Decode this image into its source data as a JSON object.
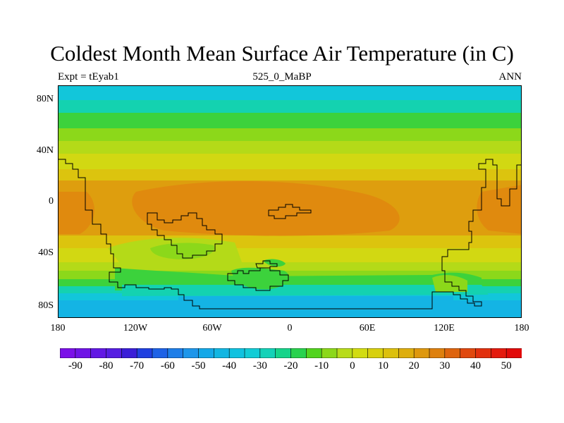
{
  "title": "Coldest Month Mean Surface Air Temperature (in C)",
  "subtitle_left": "Expt = tEyab1",
  "subtitle_center": "525_0_MaBP",
  "subtitle_right": "ANN",
  "axes": {
    "y_ticks": [
      "80N",
      "40N",
      "0",
      "40S",
      "80S"
    ],
    "x_ticks": [
      "180",
      "120W",
      "60W",
      "0",
      "60E",
      "120E",
      "180"
    ]
  },
  "colorbar": {
    "labels": [
      "-90",
      "-80",
      "-70",
      "-60",
      "-50",
      "-40",
      "-30",
      "-20",
      "-10",
      "0",
      "10",
      "20",
      "30",
      "40",
      "50"
    ],
    "colors": [
      "#7b10e8",
      "#6f14e6",
      "#6218e4",
      "#561ee2",
      "#3a1ed8",
      "#2040e0",
      "#1e62e6",
      "#1e7ee8",
      "#1e96ea",
      "#14a8e8",
      "#12b6e2",
      "#10c2e0",
      "#12ccd6",
      "#14d2b8",
      "#16d48a",
      "#28d24e",
      "#52d41e",
      "#8cd81a",
      "#b8dc1a",
      "#d2dc12",
      "#d8d00e",
      "#dcc00e",
      "#deae0e",
      "#de980e",
      "#de800e",
      "#de640e",
      "#e0480e",
      "#e2300e",
      "#e41a0e",
      "#e20a0a"
    ]
  },
  "map": {
    "colors": {
      "ocean_cold": "#14b4e4",
      "cyan": "#12c6da",
      "teal": "#14d2b0",
      "green": "#3cd23c",
      "lime": "#8cd81a",
      "yellowgreen": "#b4da18",
      "yellow": "#d2d812",
      "gold": "#dcc40e",
      "orange": "#de9e0e",
      "warm": "#e08a0e"
    }
  }
}
